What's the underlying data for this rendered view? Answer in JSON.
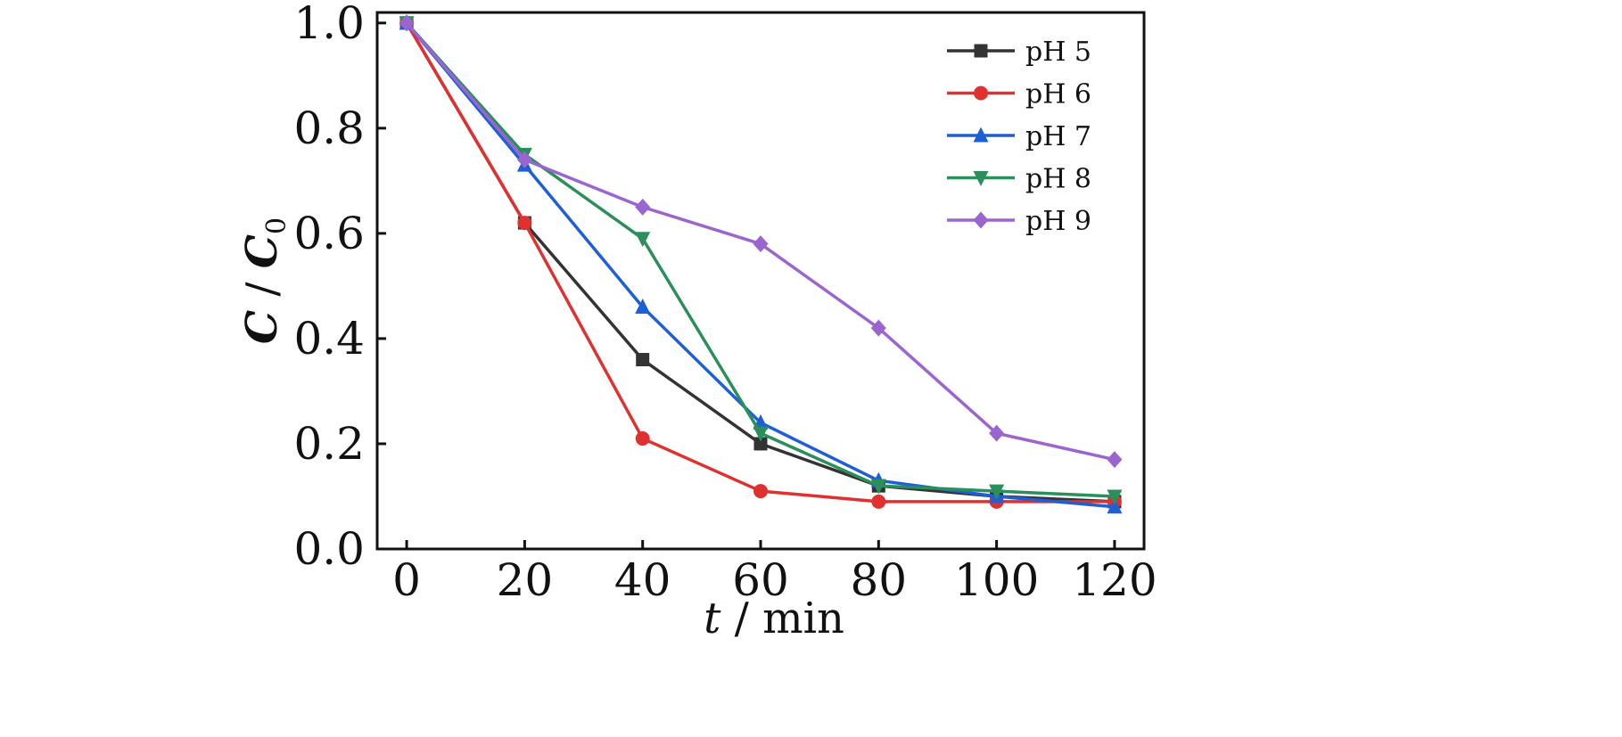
{
  "chart_data": {
    "type": "line",
    "x": [
      0,
      20,
      40,
      60,
      80,
      100,
      120
    ],
    "xlim": [
      -5,
      125
    ],
    "ylim": [
      0.0,
      1.02
    ],
    "xticks": [
      "0",
      "20",
      "40",
      "60",
      "80",
      "100",
      "120"
    ],
    "yticks": [
      "0.0",
      "0.2",
      "0.4",
      "0.6",
      "0.8",
      "1.0"
    ],
    "xlabel": {
      "var": "t",
      "unit": "min"
    },
    "ylabel": {
      "num": "C",
      "den": "C",
      "sub": "0"
    },
    "legend_position": "top-right",
    "grid": false,
    "series": [
      {
        "name": "pH 5",
        "color": "#333333",
        "marker": "square",
        "values": [
          1.0,
          0.62,
          0.36,
          0.2,
          0.12,
          0.1,
          0.09
        ]
      },
      {
        "name": "pH 6",
        "color": "#e03030",
        "marker": "circle",
        "values": [
          1.0,
          0.62,
          0.21,
          0.11,
          0.09,
          0.09,
          0.09
        ]
      },
      {
        "name": "pH 7",
        "color": "#1f5fd6",
        "marker": "triangle-up",
        "values": [
          1.0,
          0.73,
          0.46,
          0.24,
          0.13,
          0.1,
          0.08
        ]
      },
      {
        "name": "pH 8",
        "color": "#2a8f5a",
        "marker": "triangle-down",
        "values": [
          1.0,
          0.75,
          0.59,
          0.22,
          0.12,
          0.11,
          0.1
        ]
      },
      {
        "name": "pH 9",
        "color": "#9b65d0",
        "marker": "diamond",
        "values": [
          1.0,
          0.74,
          0.65,
          0.58,
          0.42,
          0.22,
          0.17
        ]
      }
    ]
  }
}
